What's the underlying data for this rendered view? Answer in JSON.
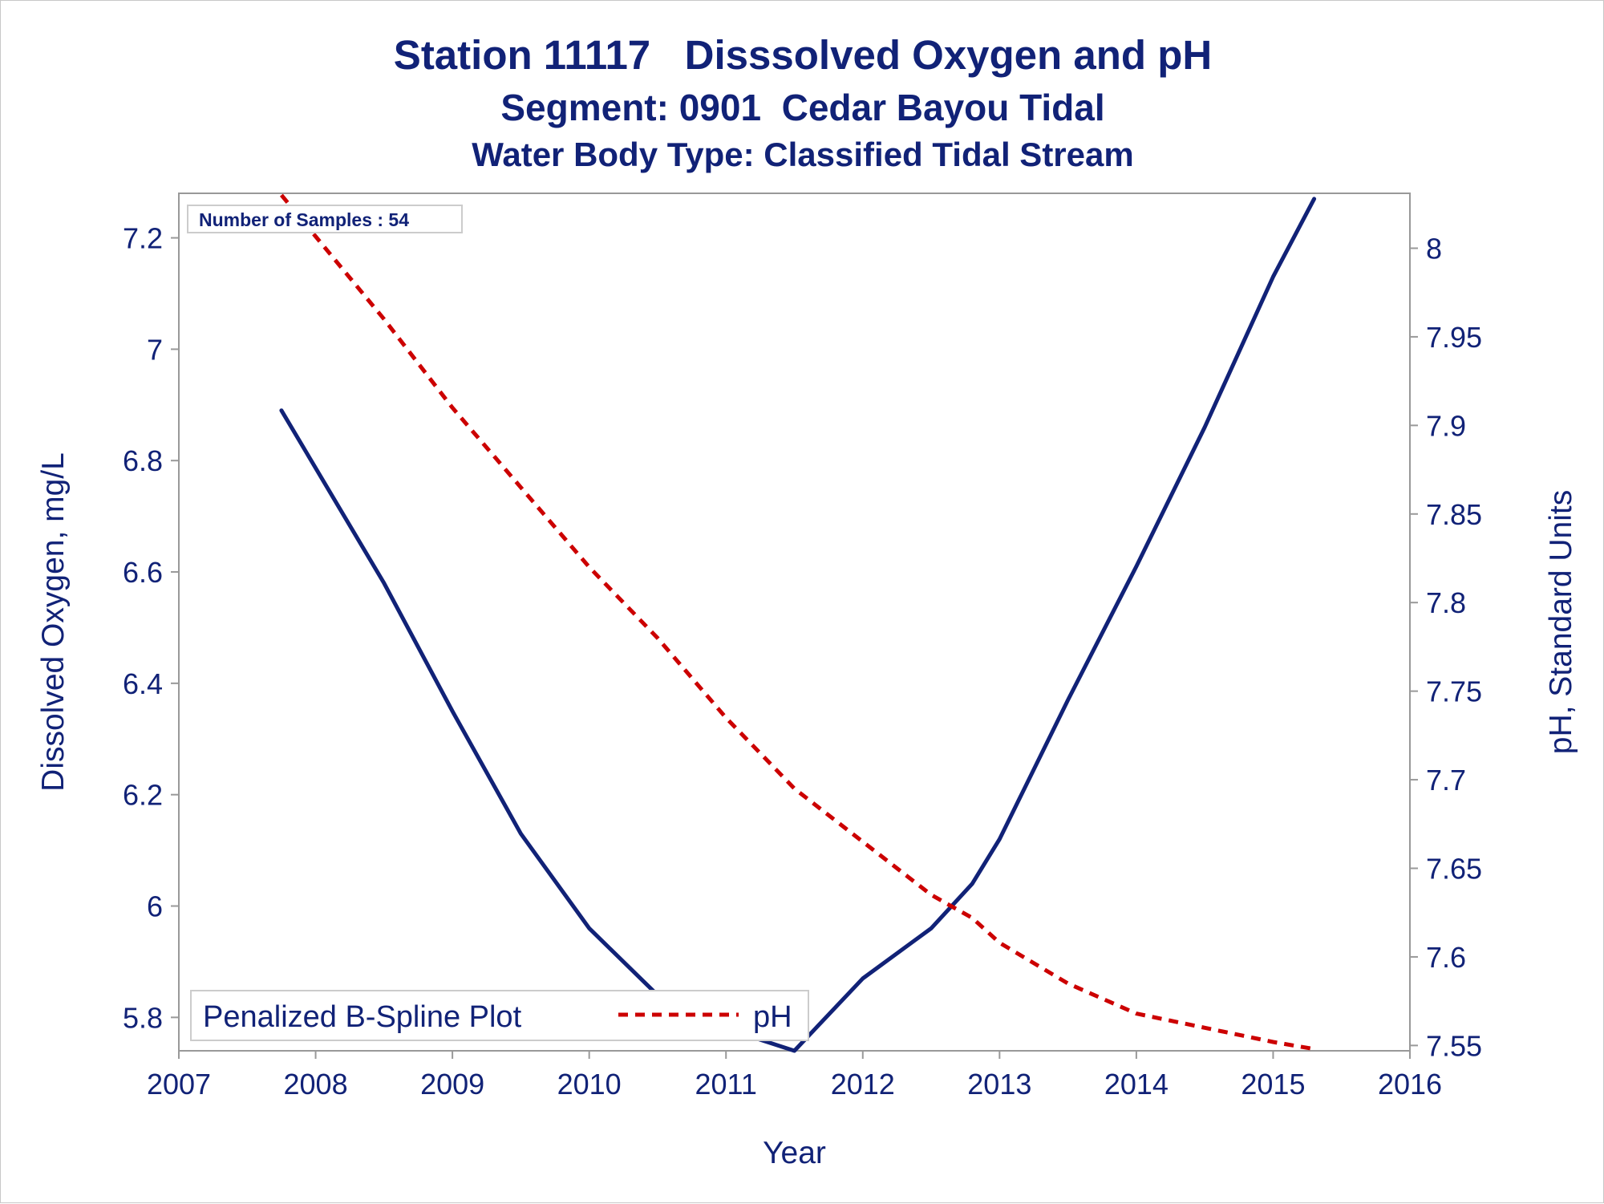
{
  "title": {
    "line1": "Station 11117   Disssolved Oxygen and pH",
    "line2": "Segment: 0901  Cedar Bayou Tidal",
    "line3": "Water Body Type: Classified Tidal Stream"
  },
  "inset": {
    "text": "Number of Samples : 54"
  },
  "legend": {
    "label": "Penalized B-Spline Plot",
    "placement": "bottom-left",
    "entries": [
      {
        "name": "pH",
        "style": "dashed",
        "color": "#cc0000"
      }
    ]
  },
  "colors": {
    "text": "#112277",
    "do_line": "#112277",
    "ph_line": "#cc0000",
    "axis": "#999999"
  },
  "chart_data": {
    "type": "line",
    "xlabel": "Year",
    "ylabel": "Dissolved Oxygen, mg/L",
    "y2label": "pH, Standard Units",
    "xlim": [
      2007,
      2016
    ],
    "ylim": [
      5.74,
      7.28
    ],
    "y2lim": [
      7.547,
      8.031
    ],
    "xticks": [
      "2007",
      "2008",
      "2009",
      "2010",
      "2011",
      "2012",
      "2013",
      "2014",
      "2015",
      "2016"
    ],
    "yticks": [
      "5.8",
      "6",
      "6.2",
      "6.4",
      "6.6",
      "6.8",
      "7",
      "7.2"
    ],
    "y2ticks": [
      "7.55",
      "7.6",
      "7.65",
      "7.7",
      "7.75",
      "7.8",
      "7.85",
      "7.9",
      "7.95",
      "8"
    ],
    "grid": false,
    "series": [
      {
        "axis": "left",
        "style": "solid",
        "color": "#112277",
        "x": [
          2007.75,
          2008.5,
          2009.0,
          2009.5,
          2010.0,
          2010.5,
          2011.0,
          2011.5,
          2012.0,
          2012.5,
          2012.8,
          2013.0,
          2013.5,
          2014.0,
          2014.5,
          2015.0,
          2015.3
        ],
        "y": [
          6.89,
          6.58,
          6.35,
          6.13,
          5.96,
          5.84,
          5.78,
          5.74,
          5.87,
          5.96,
          6.04,
          6.12,
          6.37,
          6.61,
          6.86,
          7.13,
          7.27
        ]
      },
      {
        "name": "pH",
        "axis": "right",
        "style": "dashed",
        "color": "#cc0000",
        "x": [
          2007.75,
          2008.5,
          2009.0,
          2009.5,
          2010.0,
          2010.5,
          2011.0,
          2011.5,
          2012.0,
          2012.5,
          2012.8,
          2013.0,
          2013.5,
          2014.0,
          2014.5,
          2015.0,
          2015.3
        ],
        "y": [
          8.03,
          7.96,
          7.91,
          7.865,
          7.82,
          7.78,
          7.735,
          7.695,
          7.665,
          7.635,
          7.622,
          7.608,
          7.585,
          7.568,
          7.56,
          7.552,
          7.548
        ]
      }
    ]
  }
}
